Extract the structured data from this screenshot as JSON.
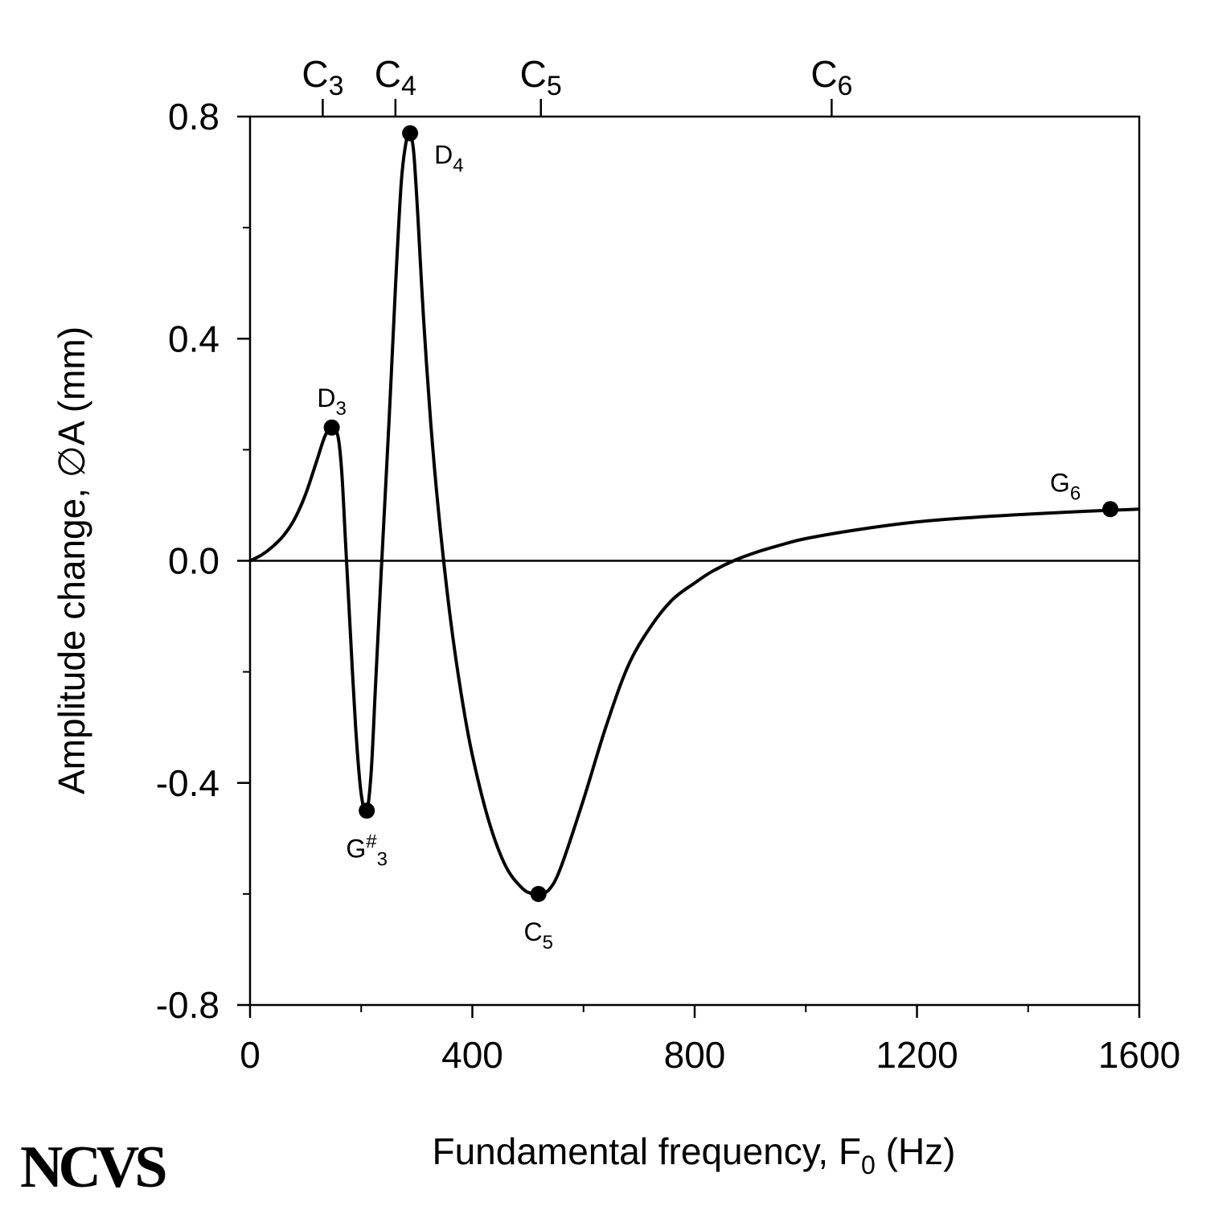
{
  "chart_data": {
    "type": "line",
    "xlabel": "Fundamental frequency, F",
    "xlabel_sub": "0",
    "xlabel_unit": " (Hz)",
    "ylabel": "Amplitude change, ∅A (mm)",
    "xlim": [
      0,
      1600
    ],
    "ylim": [
      -0.8,
      0.8
    ],
    "x_ticks": [
      0,
      400,
      800,
      1200,
      1600
    ],
    "x_tick_labels": [
      "0",
      "400",
      "800",
      "1200",
      "1600"
    ],
    "x_minor_ticks": [
      200,
      600,
      1000,
      1400
    ],
    "y_ticks": [
      -0.8,
      -0.4,
      0.0,
      0.4,
      0.8
    ],
    "y_tick_labels": [
      "-0.8",
      "-0.4",
      "0.0",
      "0.4",
      "0.8"
    ],
    "y_minor_ticks": [
      -0.6,
      -0.2,
      0.2,
      0.6
    ],
    "zero_line": true,
    "grid": false,
    "legend": "none",
    "top_axis_notes": [
      {
        "base": "C",
        "sub": "3",
        "freq": 130.8
      },
      {
        "base": "C",
        "sub": "4",
        "freq": 261.6
      },
      {
        "base": "C",
        "sub": "5",
        "freq": 523.3
      },
      {
        "base": "C",
        "sub": "6",
        "freq": 1046.5
      }
    ],
    "series": [
      {
        "x": [
          0,
          20,
          40,
          60,
          80,
          100,
          120,
          135,
          147,
          158,
          165,
          172,
          180,
          190,
          200,
          210,
          218,
          226,
          236,
          250,
          262,
          272,
          280,
          286,
          290,
          295,
          302,
          312,
          325,
          340,
          360,
          380,
          400,
          430,
          460,
          490,
          510,
          523,
          540,
          560,
          600,
          640,
          680,
          720,
          760,
          800,
          830,
          870,
          910,
          950,
          1000,
          1100,
          1200,
          1300,
          1400,
          1500,
          1550,
          1600
        ],
        "y": [
          0.0,
          0.01,
          0.025,
          0.045,
          0.075,
          0.12,
          0.18,
          0.225,
          0.24,
          0.225,
          0.16,
          0.03,
          -0.12,
          -0.3,
          -0.42,
          -0.45,
          -0.38,
          -0.22,
          -0.02,
          0.25,
          0.5,
          0.68,
          0.75,
          0.77,
          0.765,
          0.73,
          0.62,
          0.44,
          0.25,
          0.08,
          -0.1,
          -0.24,
          -0.35,
          -0.47,
          -0.55,
          -0.59,
          -0.6,
          -0.6,
          -0.59,
          -0.55,
          -0.43,
          -0.3,
          -0.19,
          -0.12,
          -0.07,
          -0.04,
          -0.02,
          0.0,
          0.015,
          0.027,
          0.04,
          0.057,
          0.07,
          0.078,
          0.084,
          0.089,
          0.091,
          0.093
        ]
      }
    ],
    "annotations": [
      {
        "base": "D",
        "sup": "",
        "sub": "3",
        "x": 147,
        "y": 0.24,
        "pos": "above"
      },
      {
        "base": "G",
        "sup": "#",
        "sub": "3",
        "x": 210,
        "y": -0.45,
        "pos": "below"
      },
      {
        "base": "D",
        "sup": "",
        "sub": "4",
        "x": 288,
        "y": 0.77,
        "pos": "right"
      },
      {
        "base": "C",
        "sup": "",
        "sub": "5",
        "x": 519,
        "y": -0.6,
        "pos": "below"
      },
      {
        "base": "G",
        "sup": "",
        "sub": "6",
        "x": 1548,
        "y": 0.093,
        "pos": "above-left"
      }
    ]
  },
  "logo": {
    "text": "NCVS"
  }
}
